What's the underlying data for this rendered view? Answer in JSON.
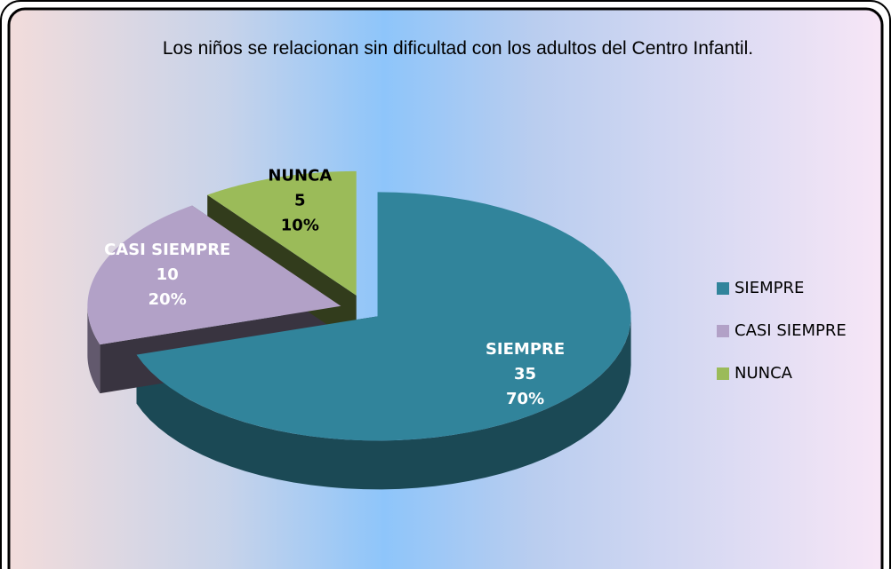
{
  "chart_data": {
    "type": "pie3d",
    "title": "Los niños se relacionan sin dificultad con los adultos del Centro Infantil.",
    "categories": [
      "SIEMPRE",
      "CASI SIEMPRE",
      "NUNCA"
    ],
    "values": [
      35,
      10,
      5
    ],
    "percent_labels": [
      "70%",
      "20%",
      "10%"
    ],
    "colors": [
      "#31849b",
      "#b2a1c7",
      "#9bbb59"
    ],
    "legend": "right"
  }
}
